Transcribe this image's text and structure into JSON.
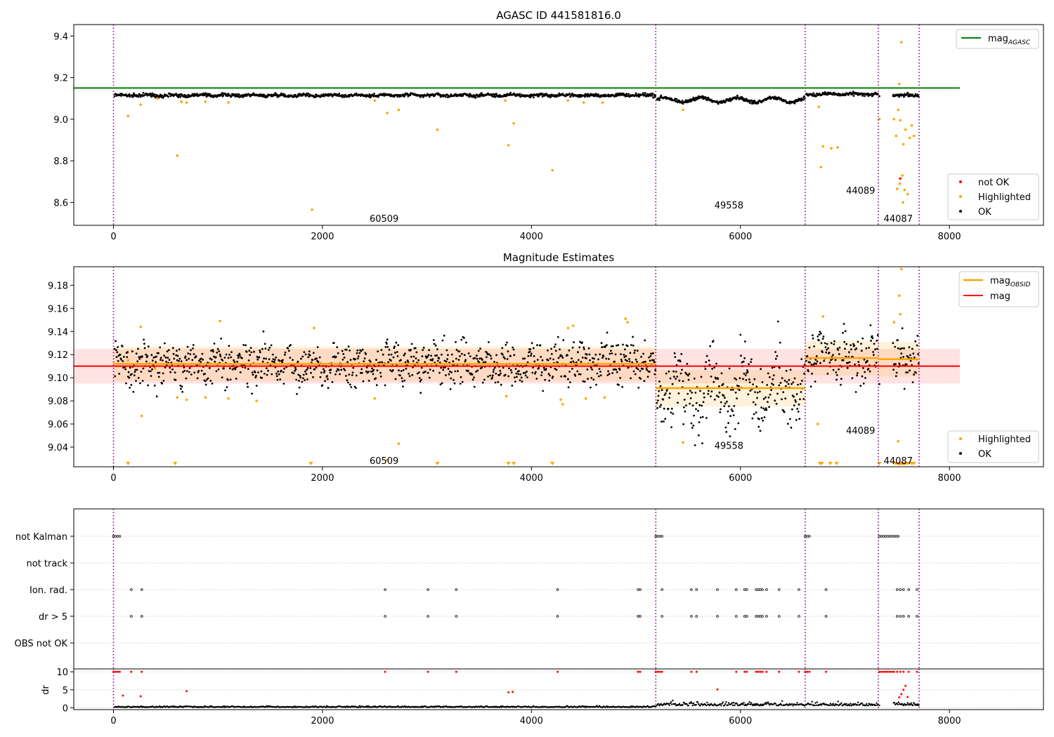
{
  "chart_data": [
    {
      "type": "scatter",
      "title": "AGASC ID 441581816.0",
      "xlim": [
        -380,
        8900
      ],
      "ylim": [
        8.49,
        9.455
      ],
      "xticks": [
        0,
        2000,
        4000,
        6000,
        8000
      ],
      "yticks": [
        8.6,
        8.8,
        9.0,
        9.2,
        9.4
      ],
      "ytick_labels": [
        "8.6",
        "8.8",
        "9.0",
        "9.2",
        "9.4"
      ],
      "lines": [
        {
          "name": "mag",
          "subscript": "AGASC",
          "color": "#008000",
          "y": 9.15,
          "x0": -380,
          "x1": 8100
        }
      ],
      "legend_lines_position": "top-right",
      "legend_points": [
        {
          "name": "not OK",
          "color": "#ff0000"
        },
        {
          "name": "Highlighted",
          "color": "#ffa500"
        },
        {
          "name": "OK",
          "color": "#000000"
        }
      ],
      "legend_points_position": "lower-right",
      "highlighted_points": [
        [
          140,
          9.015
        ],
        [
          260,
          9.07
        ],
        [
          420,
          9.1
        ],
        [
          610,
          8.825
        ],
        [
          650,
          9.085
        ],
        [
          700,
          9.08
        ],
        [
          880,
          9.085
        ],
        [
          1100,
          9.08
        ],
        [
          1900,
          8.565
        ],
        [
          2500,
          9.09
        ],
        [
          2620,
          9.03
        ],
        [
          2730,
          9.045
        ],
        [
          3100,
          8.95
        ],
        [
          3780,
          8.875
        ],
        [
          3830,
          8.98
        ],
        [
          3750,
          9.09
        ],
        [
          4200,
          8.755
        ],
        [
          4350,
          9.09
        ],
        [
          4500,
          9.08
        ],
        [
          4680,
          9.08
        ],
        [
          5450,
          9.045
        ],
        [
          6750,
          9.06
        ],
        [
          6770,
          8.77
        ],
        [
          6790,
          8.87
        ],
        [
          6870,
          8.86
        ],
        [
          6930,
          8.865
        ],
        [
          7330,
          9.0
        ],
        [
          7470,
          9.0
        ],
        [
          7490,
          8.92
        ],
        [
          7510,
          9.045
        ],
        [
          7520,
          9.17
        ],
        [
          7530,
          8.995
        ],
        [
          7540,
          9.37
        ],
        [
          7550,
          8.73
        ],
        [
          7560,
          8.88
        ],
        [
          7570,
          8.66
        ],
        [
          7580,
          8.95
        ],
        [
          7600,
          8.64
        ],
        [
          7620,
          8.91
        ],
        [
          7640,
          8.97
        ],
        [
          7660,
          8.92
        ],
        [
          7500,
          8.665
        ],
        [
          7525,
          8.69
        ],
        [
          7555,
          8.6
        ]
      ],
      "not_ok_points": [
        [
          7530,
          8.715
        ]
      ]
    },
    {
      "type": "scatter",
      "title": "Magnitude Estimates",
      "xlim": [
        -380,
        8900
      ],
      "ylim": [
        9.023,
        9.196
      ],
      "xticks": [
        0,
        2000,
        4000,
        6000,
        8000
      ],
      "yticks": [
        9.04,
        9.06,
        9.08,
        9.1,
        9.12,
        9.14,
        9.16,
        9.18
      ],
      "ytick_labels": [
        "9.04",
        "9.06",
        "9.08",
        "9.10",
        "9.12",
        "9.14",
        "9.16",
        "9.18"
      ],
      "lines": [
        {
          "name": "mag",
          "subscript": "OBSID",
          "color": "#ffa500"
        },
        {
          "name": "mag",
          "color": "#ff0000",
          "y": 9.11,
          "x0": -380,
          "x1": 8100,
          "band": [
            9.095,
            9.125
          ]
        }
      ],
      "legend_lines_position": "top-right",
      "legend_points": [
        {
          "name": "Highlighted",
          "color": "#ffa500"
        },
        {
          "name": "OK",
          "color": "#000000"
        }
      ],
      "legend_points_position": "lower-right",
      "obsid_segments": [
        {
          "obsid": "60509",
          "x0": 0,
          "x1": 5190,
          "mag": 9.112,
          "band": [
            9.097,
            9.127
          ]
        },
        {
          "obsid": "49558",
          "x0": 5190,
          "x1": 6620,
          "mag": 9.091,
          "band": [
            9.075,
            9.107
          ]
        },
        {
          "obsid": "44089",
          "x0": 6620,
          "x1": 7320,
          "mag": 9.117,
          "band": [
            9.102,
            9.132
          ]
        },
        {
          "obsid": "44087",
          "x0": 7320,
          "x1": 7710,
          "mag": 9.116,
          "band": [
            9.101,
            9.131
          ]
        }
      ],
      "highlighted_points": [
        [
          140,
          9.115
        ],
        [
          260,
          9.144
        ],
        [
          270,
          9.067
        ],
        [
          400,
          9.108
        ],
        [
          610,
          9.083
        ],
        [
          700,
          9.081
        ],
        [
          880,
          9.083
        ],
        [
          1020,
          9.149
        ],
        [
          1100,
          9.082
        ],
        [
          1370,
          9.08
        ],
        [
          1920,
          9.143
        ],
        [
          2500,
          9.082
        ],
        [
          2620,
          9.029
        ],
        [
          2730,
          9.043
        ],
        [
          3760,
          9.084
        ],
        [
          4280,
          9.081
        ],
        [
          4300,
          9.077
        ],
        [
          4350,
          9.143
        ],
        [
          4400,
          9.145
        ],
        [
          4520,
          9.082
        ],
        [
          4700,
          9.083
        ],
        [
          4900,
          9.151
        ],
        [
          4920,
          9.148
        ],
        [
          5450,
          9.044
        ],
        [
          6740,
          9.06
        ],
        [
          6790,
          9.153
        ],
        [
          7470,
          9.148
        ],
        [
          7510,
          9.045
        ],
        [
          7520,
          9.171
        ],
        [
          7530,
          9.155
        ],
        [
          7540,
          9.194
        ]
      ],
      "offscale_markers_x": [
        140,
        590,
        1890,
        3100,
        3780,
        3830,
        4200,
        6760,
        6780,
        6860,
        6920,
        7330,
        7480,
        7500,
        7510,
        7520,
        7530,
        7540,
        7550,
        7560,
        7570,
        7580,
        7600,
        7640,
        7660
      ]
    },
    {
      "type": "scatter",
      "xlim": [
        -380,
        8900
      ],
      "categories": [
        "not Kalman",
        "not track",
        "Ion. rad.",
        "dr > 5",
        "OBS not OK"
      ],
      "flags": [
        {
          "category": "not Kalman",
          "x": [
            0,
            20,
            40,
            60,
            5190,
            5210,
            5230,
            5250,
            6620,
            6640,
            6660,
            7330,
            7350,
            7370,
            7390,
            7410,
            7430,
            7450,
            7470,
            7490,
            7510
          ]
        },
        {
          "category": "not track",
          "x": []
        },
        {
          "category": "Ion. rad.",
          "x": [
            170,
            270,
            2600,
            3010,
            3280,
            4250,
            5020,
            5040,
            5250,
            5530,
            5580,
            5780,
            5960,
            6040,
            6060,
            6150,
            6170,
            6190,
            6210,
            6250,
            6370,
            6560,
            6820,
            7500,
            7530,
            7560,
            7610,
            7690
          ]
        },
        {
          "category": "dr > 5",
          "x": [
            170,
            270,
            2600,
            3010,
            3280,
            4250,
            5020,
            5040,
            5250,
            5530,
            5580,
            5780,
            5960,
            6040,
            6060,
            6150,
            6170,
            6190,
            6210,
            6250,
            6370,
            6560,
            6820,
            7500,
            7530,
            7560,
            7610,
            7690
          ]
        },
        {
          "category": "OBS not OK",
          "x": []
        }
      ]
    },
    {
      "type": "scatter",
      "xlim": [
        -380,
        8900
      ],
      "ylim": [
        -1,
        11
      ],
      "ylabel": "dr",
      "xticks": [
        0,
        2000,
        4000,
        6000,
        8000
      ],
      "yticks": [
        0,
        5,
        10
      ],
      "ytick_labels": [
        "0",
        "5",
        "10"
      ],
      "red_points": [
        [
          0,
          10
        ],
        [
          20,
          10
        ],
        [
          40,
          10
        ],
        [
          60,
          10
        ],
        [
          90,
          3.4
        ],
        [
          170,
          10
        ],
        [
          270,
          10
        ],
        [
          260,
          3.2
        ],
        [
          700,
          4.6
        ],
        [
          2600,
          10
        ],
        [
          3010,
          10
        ],
        [
          3280,
          10
        ],
        [
          3780,
          4.3
        ],
        [
          3820,
          4.4
        ],
        [
          4250,
          10
        ],
        [
          5020,
          10
        ],
        [
          5040,
          10
        ],
        [
          5190,
          10
        ],
        [
          5210,
          10
        ],
        [
          5230,
          10
        ],
        [
          5250,
          10
        ],
        [
          5530,
          10
        ],
        [
          5580,
          10
        ],
        [
          5780,
          5.1
        ],
        [
          5960,
          10
        ],
        [
          6040,
          10
        ],
        [
          6060,
          10
        ],
        [
          6150,
          10
        ],
        [
          6170,
          10
        ],
        [
          6190,
          10
        ],
        [
          6210,
          10
        ],
        [
          6250,
          10
        ],
        [
          6370,
          10
        ],
        [
          6560,
          10
        ],
        [
          6620,
          10
        ],
        [
          6640,
          10
        ],
        [
          6660,
          10
        ],
        [
          6820,
          10
        ],
        [
          7330,
          10
        ],
        [
          7350,
          10
        ],
        [
          7370,
          10
        ],
        [
          7390,
          10
        ],
        [
          7410,
          10
        ],
        [
          7430,
          10
        ],
        [
          7450,
          10
        ],
        [
          7470,
          10
        ],
        [
          7500,
          10
        ],
        [
          7530,
          10
        ],
        [
          7560,
          10
        ],
        [
          7610,
          10
        ],
        [
          7690,
          10
        ],
        [
          7540,
          3.8
        ],
        [
          7560,
          5.0
        ],
        [
          7580,
          6.1
        ],
        [
          7520,
          2.9
        ],
        [
          7600,
          3.0
        ]
      ]
    }
  ],
  "obsid_boundaries_x": [
    0,
    5190,
    6620,
    7320,
    7710
  ],
  "obsid_labels": [
    {
      "text": "60509",
      "x": 2590
    },
    {
      "text": "49558",
      "x": 5890
    },
    {
      "text": "44089",
      "x": 7150
    },
    {
      "text": "44087",
      "x": 7510
    }
  ],
  "obsid_label_y_top": [
    8.52,
    8.585,
    8.655,
    8.52
  ],
  "obsid_label_y_mid": [
    9.028,
    9.041,
    9.054,
    9.028
  ]
}
